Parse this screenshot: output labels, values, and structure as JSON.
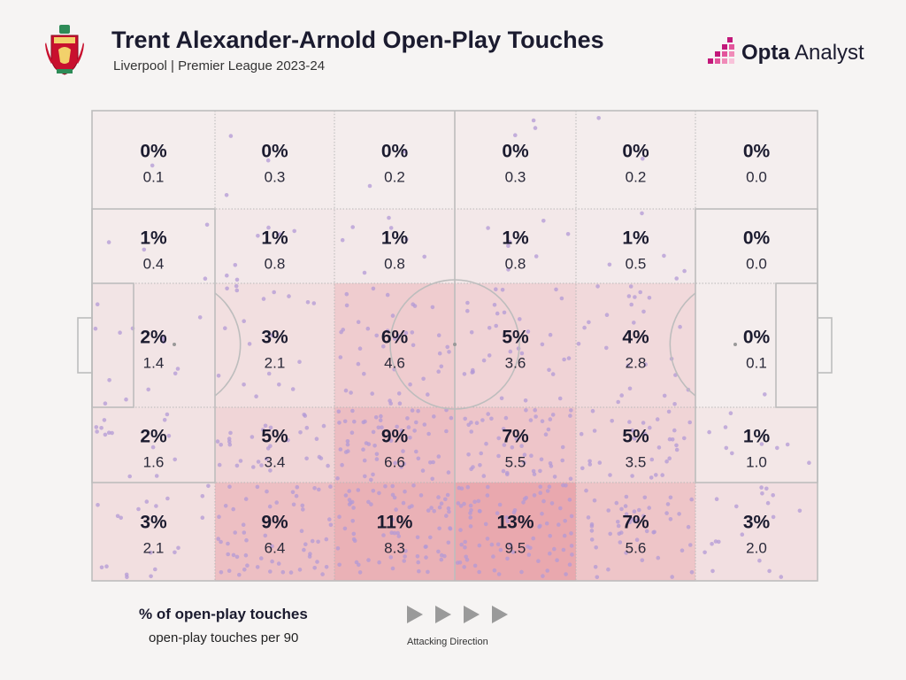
{
  "header": {
    "title": "Trent Alexander-Arnold Open-Play Touches",
    "subtitle": "Liverpool | Premier League 2023-24"
  },
  "brand": {
    "bold": "Opta",
    "light": "Analyst"
  },
  "colors": {
    "accent": "#c2187a",
    "crest_red": "#c8102e",
    "heat_low": "#f4eeee",
    "heat_high": "#e9a8ae",
    "dot": "#b39ad6",
    "pitch_line": "#bdbdbd"
  },
  "legend": {
    "pct_label": "% of open-play touches",
    "avg_label": "open-play touches per 90",
    "direction_label": "Attacking Direction"
  },
  "chart_data": {
    "type": "heatmap",
    "title": "Trent Alexander-Arnold Open-Play Touches",
    "subtitle": "Liverpool | Premier League 2023-24",
    "attacking_direction": "left-to-right",
    "cells": [
      [
        {
          "pct": "0%",
          "per90": "0.1"
        },
        {
          "pct": "0%",
          "per90": "0.3"
        },
        {
          "pct": "0%",
          "per90": "0.2"
        },
        {
          "pct": "0%",
          "per90": "0.3"
        },
        {
          "pct": "0%",
          "per90": "0.2"
        },
        {
          "pct": "0%",
          "per90": "0.0"
        }
      ],
      [
        {
          "pct": "1%",
          "per90": "0.4"
        },
        {
          "pct": "1%",
          "per90": "0.8"
        },
        {
          "pct": "1%",
          "per90": "0.8"
        },
        {
          "pct": "1%",
          "per90": "0.8"
        },
        {
          "pct": "1%",
          "per90": "0.5"
        },
        {
          "pct": "0%",
          "per90": "0.0"
        }
      ],
      [
        {
          "pct": "2%",
          "per90": "1.4"
        },
        {
          "pct": "3%",
          "per90": "2.1"
        },
        {
          "pct": "6%",
          "per90": "4.6"
        },
        {
          "pct": "5%",
          "per90": "3.6"
        },
        {
          "pct": "4%",
          "per90": "2.8"
        },
        {
          "pct": "0%",
          "per90": "0.1"
        }
      ],
      [
        {
          "pct": "2%",
          "per90": "1.6"
        },
        {
          "pct": "5%",
          "per90": "3.4"
        },
        {
          "pct": "9%",
          "per90": "6.6"
        },
        {
          "pct": "7%",
          "per90": "5.5"
        },
        {
          "pct": "5%",
          "per90": "3.5"
        },
        {
          "pct": "1%",
          "per90": "1.0"
        }
      ],
      [
        {
          "pct": "3%",
          "per90": "2.1"
        },
        {
          "pct": "9%",
          "per90": "6.4"
        },
        {
          "pct": "11%",
          "per90": "8.3"
        },
        {
          "pct": "13%",
          "per90": "9.5"
        },
        {
          "pct": "7%",
          "per90": "5.6"
        },
        {
          "pct": "3%",
          "per90": "2.0"
        }
      ]
    ]
  }
}
